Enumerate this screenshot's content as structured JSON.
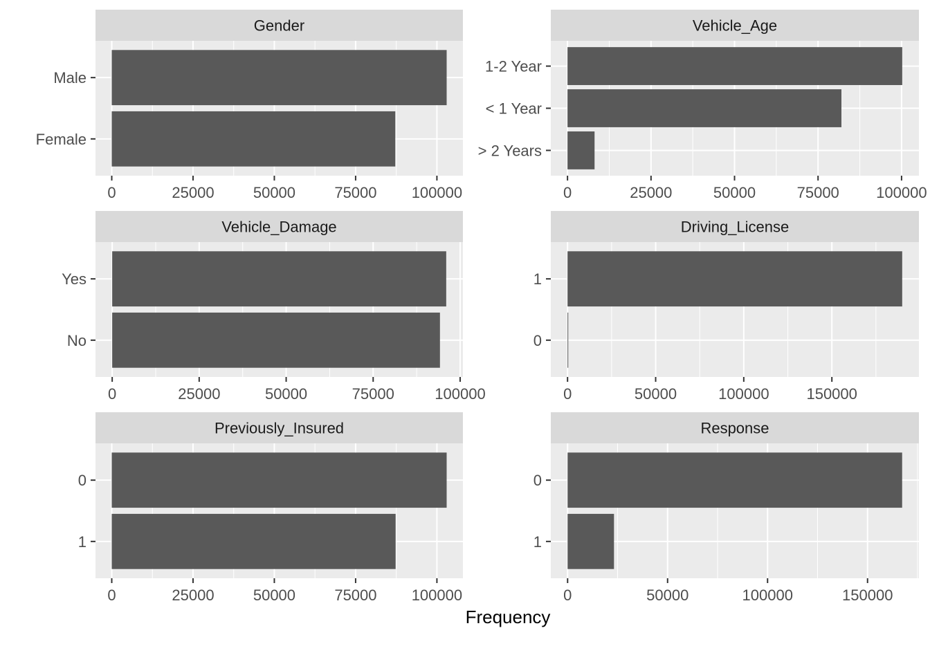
{
  "figure": {
    "xlabel": "Frequency",
    "colors": {
      "panel_bg": "#EBEBEB",
      "strip_bg": "#D9D9D9",
      "bar": "#595959",
      "grid": "#FFFFFF",
      "tick_text": "#4D4D4D",
      "strip_text": "#1A1A1A"
    }
  },
  "chart_data": [
    {
      "type": "bar",
      "orientation": "horizontal",
      "title": "Gender",
      "categories": [
        "Male",
        "Female"
      ],
      "values": [
        103000,
        87200
      ],
      "xticks": [
        0,
        25000,
        50000,
        75000,
        100000
      ],
      "xlim": [
        -5000,
        108000
      ]
    },
    {
      "type": "bar",
      "orientation": "horizontal",
      "title": "Vehicle_Age",
      "categories": [
        "1-2 Year",
        "< 1 Year",
        "> 2 Years"
      ],
      "values": [
        100200,
        82000,
        8100
      ],
      "xticks": [
        0,
        25000,
        50000,
        75000,
        100000
      ],
      "xlim": [
        -5000,
        105200
      ]
    },
    {
      "type": "bar",
      "orientation": "horizontal",
      "title": "Vehicle_Damage",
      "categories": [
        "Yes",
        "No"
      ],
      "values": [
        96000,
        94200
      ],
      "xticks": [
        0,
        25000,
        50000,
        75000,
        100000
      ],
      "xlim": [
        -4800,
        100800
      ]
    },
    {
      "type": "bar",
      "orientation": "horizontal",
      "title": "Driving_License",
      "categories": [
        "1",
        "0"
      ],
      "values": [
        189900,
        400
      ],
      "xticks": [
        0,
        50000,
        100000,
        150000
      ],
      "xlim": [
        -9500,
        199400
      ]
    },
    {
      "type": "bar",
      "orientation": "horizontal",
      "title": "Previously_Insured",
      "categories": [
        "0",
        "1"
      ],
      "values": [
        103000,
        87300
      ],
      "xticks": [
        0,
        25000,
        50000,
        75000,
        100000
      ],
      "xlim": [
        -5000,
        108000
      ]
    },
    {
      "type": "bar",
      "orientation": "horizontal",
      "title": "Response",
      "categories": [
        "0",
        "1"
      ],
      "values": [
        167300,
        23200
      ],
      "xticks": [
        0,
        50000,
        100000,
        150000
      ],
      "xlim": [
        -8400,
        175700
      ]
    }
  ]
}
